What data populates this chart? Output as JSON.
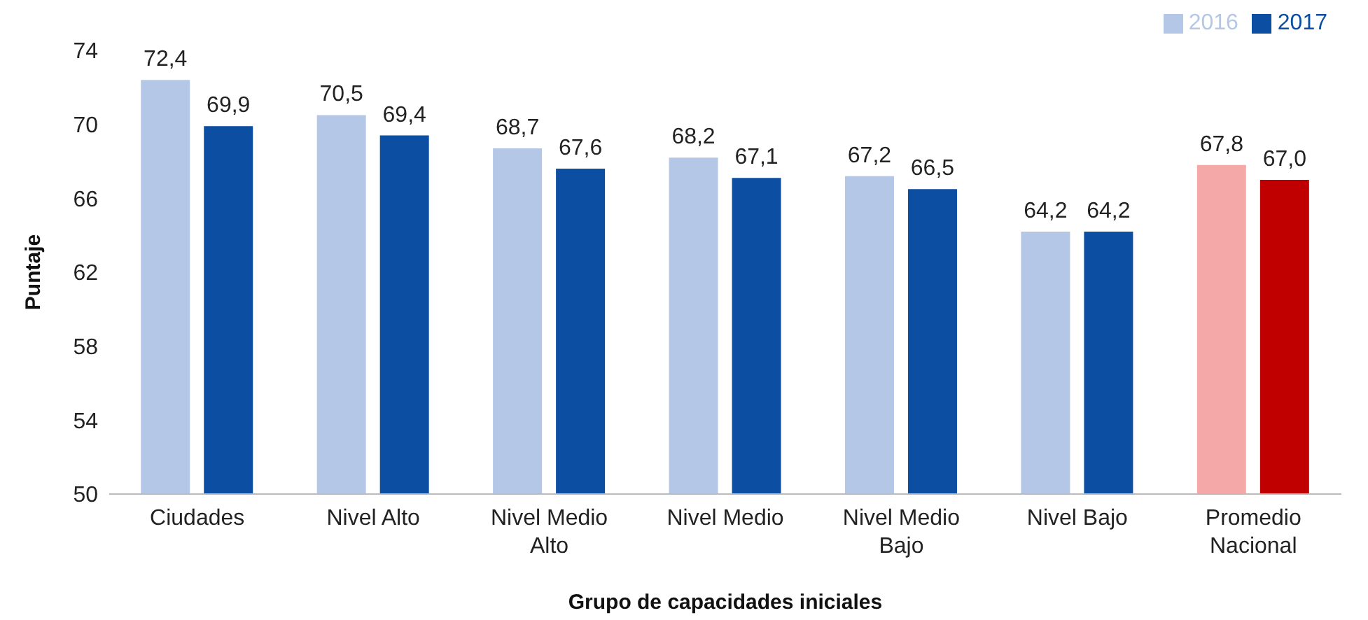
{
  "chart_data": {
    "type": "bar",
    "xlabel": "Grupo de capacidades iniciales",
    "ylabel": "Puntaje",
    "categories": [
      "Ciudades",
      "Nivel Alto",
      "Nivel Medio Alto",
      "Nivel Medio",
      "Nivel Medio Bajo",
      "Nivel Bajo",
      "Promedio Nacional"
    ],
    "series": [
      {
        "name": "2016",
        "color": "#b4c7e7",
        "colors": [
          "#b4c7e7",
          "#b4c7e7",
          "#b4c7e7",
          "#b4c7e7",
          "#b4c7e7",
          "#b4c7e7",
          "#f4a9a8"
        ],
        "values": [
          72.4,
          70.5,
          68.7,
          68.2,
          67.2,
          64.2,
          67.8
        ],
        "value_labels": [
          "72,4",
          "70,5",
          "68,7",
          "68,2",
          "67,2",
          "64,2",
          "67,8"
        ]
      },
      {
        "name": "2017",
        "color": "#0b4ea2",
        "colors": [
          "#0b4ea2",
          "#0b4ea2",
          "#0b4ea2",
          "#0b4ea2",
          "#0b4ea2",
          "#0b4ea2",
          "#c00000"
        ],
        "values": [
          69.9,
          69.4,
          67.6,
          67.1,
          66.5,
          64.2,
          67.0
        ],
        "value_labels": [
          "69,9",
          "69,4",
          "67,6",
          "67,1",
          "66,5",
          "64,2",
          "67,0"
        ]
      }
    ],
    "ylim": [
      50,
      74
    ],
    "yticks": [
      50,
      54,
      58,
      62,
      66,
      70,
      74
    ],
    "grid": false,
    "legend": "top right"
  }
}
